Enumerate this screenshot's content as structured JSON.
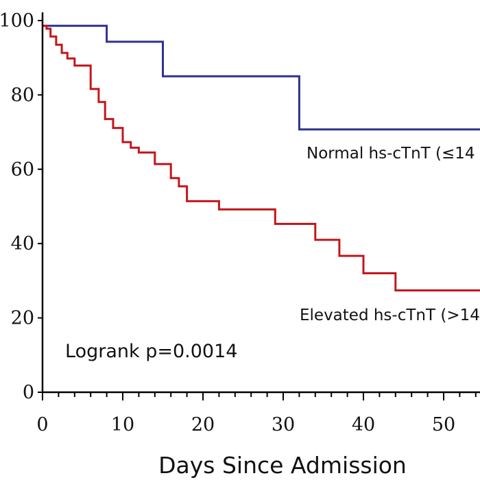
{
  "chart_data": {
    "type": "line",
    "title": "",
    "xlabel": "Days Since Admission",
    "ylabel": "",
    "xlim": [
      0,
      55
    ],
    "ylim": [
      0,
      100
    ],
    "x_ticks": [
      0,
      10,
      20,
      30,
      40,
      50
    ],
    "y_ticks": [
      0,
      20,
      40,
      60,
      80,
      100
    ],
    "y_tick_labels": [
      "0",
      "20",
      "40",
      "60",
      "80",
      "100"
    ],
    "grid": false,
    "series": [
      {
        "name": "Normal hs-cTnT (≤14",
        "color": "#2e3192",
        "step": true,
        "x": [
          0,
          8,
          15,
          32,
          55
        ],
        "y": [
          98.6,
          94.3,
          85,
          70.7,
          70.7
        ]
      },
      {
        "name": "Elevated hs-cTnT (>14",
        "color": "#c4161c",
        "step": true,
        "x": [
          0,
          0.5,
          1,
          1.7,
          2.4,
          3.1,
          4,
          6,
          7,
          7.8,
          8.8,
          10,
          11,
          12,
          14,
          16,
          17,
          18,
          22,
          29,
          34,
          37,
          40,
          44,
          55
        ],
        "y": [
          98.6,
          97.8,
          95.7,
          93.5,
          91.3,
          89.8,
          87.9,
          81.6,
          78.1,
          73.5,
          71.1,
          67.3,
          65.8,
          64.5,
          61.4,
          57.6,
          55.4,
          51.4,
          49.2,
          45.3,
          41,
          36.7,
          32,
          27.4,
          27.4
        ]
      }
    ],
    "annotations": [
      "Logrank p=0.0014"
    ]
  }
}
